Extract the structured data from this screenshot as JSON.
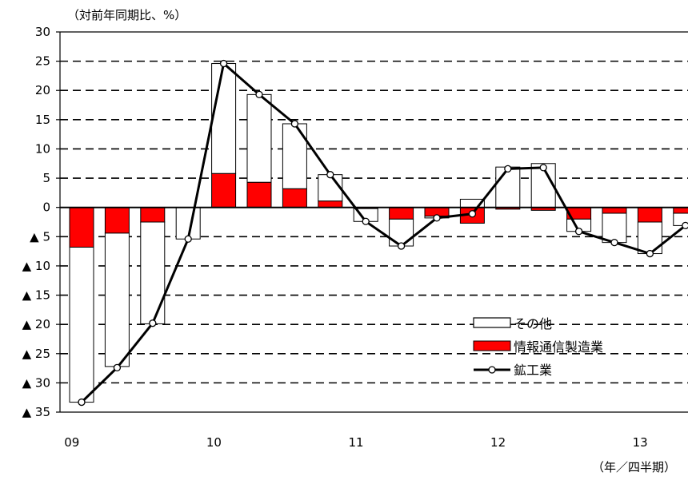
{
  "chart_data": {
    "type": "bar",
    "stacked": true,
    "ylabel": "（対前年同期比、%）",
    "xlabel": "（年／四半期）",
    "ylim": [
      -35,
      30
    ],
    "yticks": [
      30,
      25,
      20,
      15,
      10,
      5,
      0,
      -5,
      -10,
      -15,
      -20,
      -25,
      -30,
      -35
    ],
    "ytick_labels": [
      "30",
      "25",
      "20",
      "15",
      "10",
      "5",
      "0",
      "▲ 5",
      "▲ 10",
      "▲ 15",
      "▲ 20",
      "▲ 25",
      "▲ 30",
      "▲ 35"
    ],
    "year_labels": [
      {
        "label": "09",
        "index": 0
      },
      {
        "label": "10",
        "index": 4
      },
      {
        "label": "11",
        "index": 8
      },
      {
        "label": "12",
        "index": 12
      },
      {
        "label": "13",
        "index": 16
      }
    ],
    "categories": [
      "09Q1",
      "09Q2",
      "09Q3",
      "09Q4",
      "10Q1",
      "10Q2",
      "10Q3",
      "10Q4",
      "11Q1",
      "11Q2",
      "11Q3",
      "11Q4",
      "12Q1",
      "12Q2",
      "12Q3",
      "12Q4",
      "13Q1",
      "13Q2"
    ],
    "series": [
      {
        "name": "情報通信製造業",
        "kind": "bar",
        "color": "#ff0000",
        "values": [
          -6.8,
          -4.4,
          -2.5,
          0.0,
          5.8,
          4.3,
          3.2,
          1.1,
          -0.2,
          -2.0,
          -1.5,
          -2.7,
          -0.3,
          -0.5,
          -2.0,
          -1.0,
          -2.5,
          -1.0
        ]
      },
      {
        "name": "その他",
        "kind": "bar",
        "color": "#ffffff",
        "values": [
          -26.5,
          -22.8,
          -17.4,
          -5.4,
          18.8,
          15.0,
          11.1,
          4.5,
          -2.2,
          -4.6,
          -0.3,
          1.4,
          6.9,
          7.5,
          -2.1,
          -5.0,
          -5.4,
          -2.1
        ]
      },
      {
        "name": "鉱工業",
        "kind": "line",
        "color": "#000000",
        "values": [
          -33.3,
          -27.4,
          -19.8,
          -5.4,
          24.6,
          19.3,
          14.3,
          5.6,
          -2.4,
          -6.6,
          -1.8,
          -1.1,
          6.6,
          6.8,
          -4.1,
          -6.0,
          -7.9,
          -3.1
        ]
      }
    ],
    "legend": {
      "position": "lower-right",
      "entries": [
        "その他",
        "情報通信製造業",
        "鉱工業"
      ]
    }
  }
}
